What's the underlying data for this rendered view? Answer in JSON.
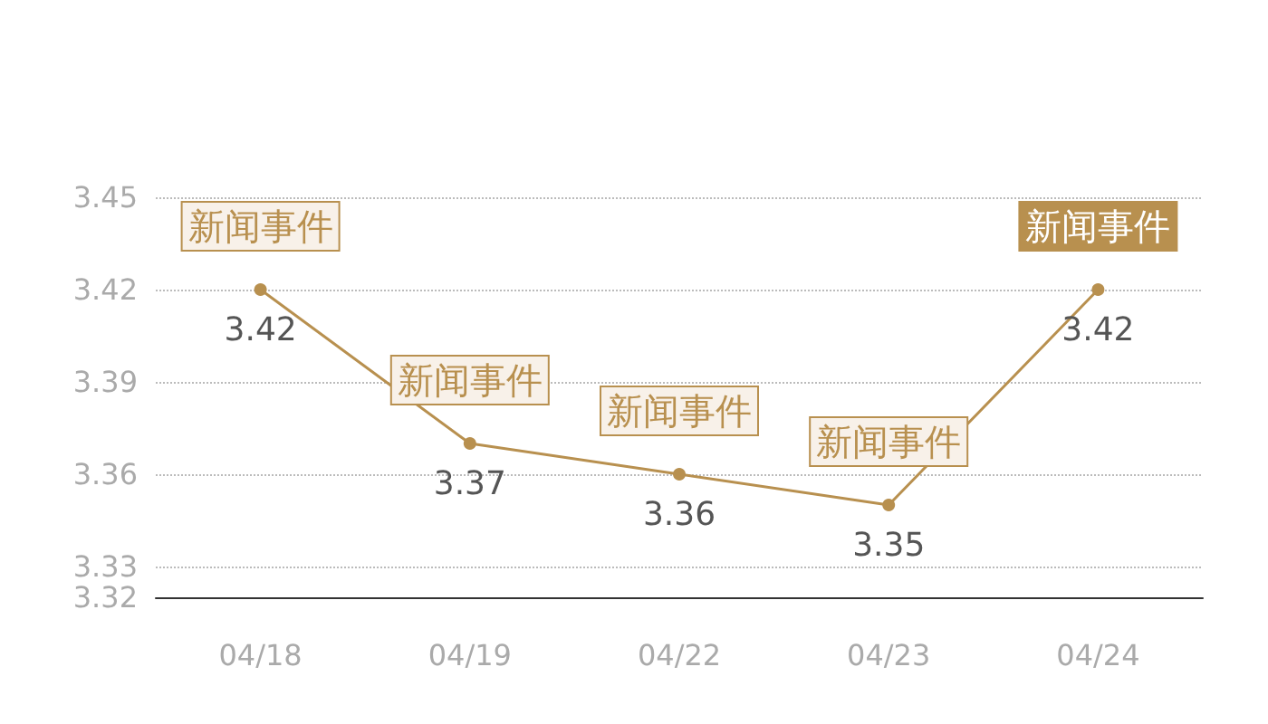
{
  "chart_data": {
    "type": "line",
    "categories": [
      "04/18",
      "04/19",
      "04/22",
      "04/23",
      "04/24"
    ],
    "series": [
      {
        "color": "#b8904f",
        "values": [
          3.42,
          3.37,
          3.36,
          3.35,
          3.42
        ]
      }
    ],
    "ylim": [
      3.32,
      3.45
    ],
    "yticks": [
      3.32,
      3.33,
      3.36,
      3.39,
      3.42,
      3.45
    ],
    "grid": "y",
    "marker": "circle",
    "line_style": "solid",
    "data_labels": true,
    "annotations": [
      {
        "text": "新闻事件",
        "x": "04/18",
        "y": 3.42
      },
      {
        "text": "新闻事件",
        "x": "04/19",
        "y": 3.37
      },
      {
        "text": "新闻事件",
        "x": "04/22",
        "y": 3.36
      },
      {
        "text": "新闻事件",
        "x": "04/23",
        "y": 3.35
      },
      {
        "text": "新闻事件",
        "x": "04/24",
        "y": 3.42
      }
    ]
  }
}
